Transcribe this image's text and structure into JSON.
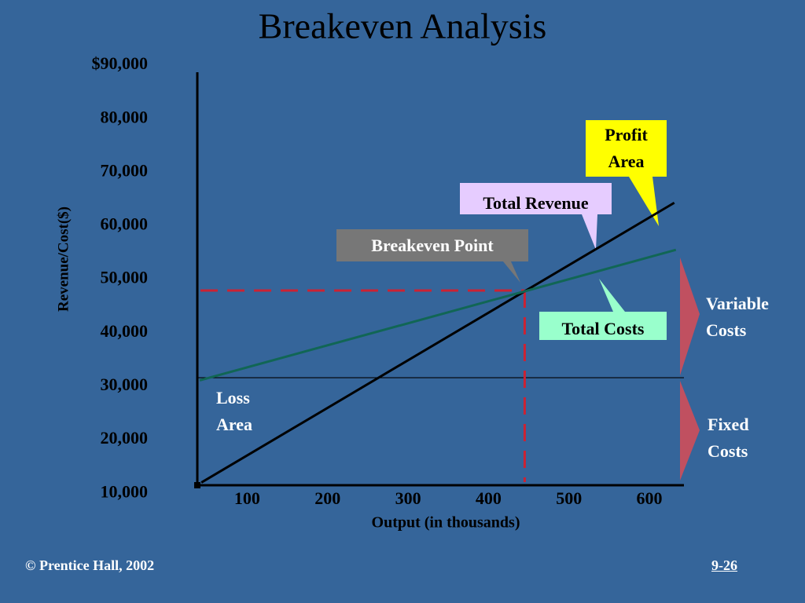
{
  "chart_data": {
    "type": "line",
    "title": "Breakeven Analysis",
    "x_label": "Output (in thousands)",
    "y_label": "Revenue/Cost($)",
    "xlim": [
      38,
      643
    ],
    "ylim": [
      11500,
      88700
    ],
    "xticks": [
      100,
      200,
      300,
      400,
      500,
      600
    ],
    "yticks": [
      {
        "value": 90000,
        "label": "$90,000"
      },
      {
        "value": 80000,
        "label": "80,000"
      },
      {
        "value": 70000,
        "label": "70,000"
      },
      {
        "value": 60000,
        "label": "60,000"
      },
      {
        "value": 50000,
        "label": "50,000"
      },
      {
        "value": 40000,
        "label": "40,000"
      },
      {
        "value": 30000,
        "label": "30,000"
      },
      {
        "value": 20000,
        "label": "20,000"
      },
      {
        "value": 10000,
        "label": "10,000"
      }
    ],
    "grid": false,
    "series": [
      {
        "name": "Total Revenue",
        "color": "#000000",
        "x": [
          43,
          631
        ],
        "values": [
          12000,
          64300
        ]
      },
      {
        "name": "Total Costs",
        "color": "#116655",
        "x": [
          41,
          633
        ],
        "values": [
          31100,
          55500
        ]
      }
    ],
    "fixed_costs": {
      "value": 31600,
      "color": "#000000"
    },
    "breakeven": {
      "label": "Breakeven Point",
      "x": 445,
      "y": 47900,
      "color": "#cc2233"
    },
    "annotations": {
      "profit_area": "Profit Area",
      "loss_area": "Loss Area",
      "variable_costs": "Variable Costs",
      "fixed_costs": "Fixed Costs"
    },
    "footer": {
      "left": "© Prentice Hall, 2002",
      "right": "9-26"
    }
  }
}
